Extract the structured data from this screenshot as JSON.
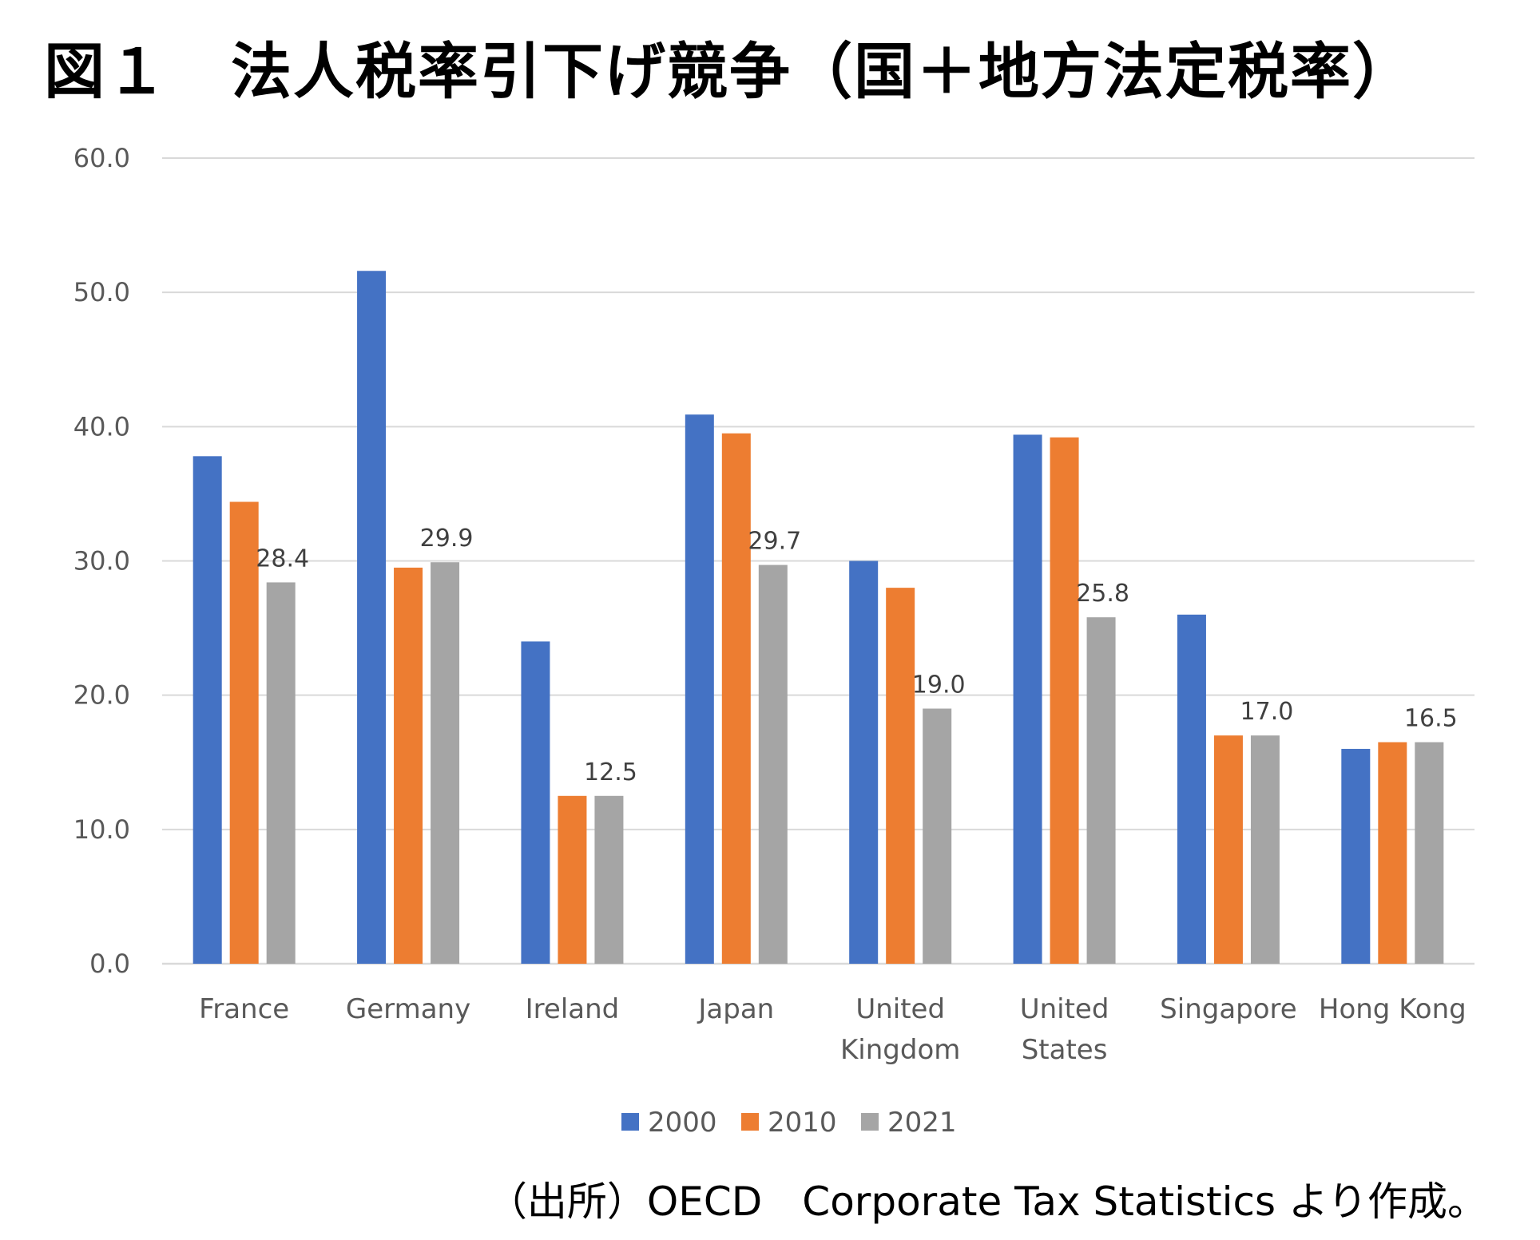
{
  "title": "図１　法人税率引下げ競争（国＋地方法定税率）",
  "source_note": "（出所）OECD　Corporate Tax Statistics より作成。",
  "colors": {
    "2000": "#4472C4",
    "2010": "#ED7D31",
    "2021": "#A5A5A5",
    "grid": "#D9D9D9"
  },
  "chart_data": {
    "type": "bar",
    "title": "",
    "xlabel": "",
    "ylabel": "",
    "ylim": [
      0,
      60
    ],
    "yticks": [
      "0.0",
      "10.0",
      "20.0",
      "30.0",
      "40.0",
      "50.0",
      "60.0"
    ],
    "grid": true,
    "legend_position": "bottom",
    "categories": [
      [
        "France"
      ],
      [
        "Germany"
      ],
      [
        "Ireland"
      ],
      [
        "Japan"
      ],
      [
        "United",
        "Kingdom"
      ],
      [
        "United",
        "States"
      ],
      [
        "Singapore"
      ],
      [
        "Hong Kong"
      ]
    ],
    "series": [
      {
        "name": "2000",
        "values": [
          37.8,
          51.6,
          24.0,
          40.9,
          30.0,
          39.4,
          26.0,
          16.0
        ]
      },
      {
        "name": "2010",
        "values": [
          34.4,
          29.5,
          12.5,
          39.5,
          28.0,
          39.2,
          17.0,
          16.5
        ]
      },
      {
        "name": "2021",
        "values": [
          28.4,
          29.9,
          12.5,
          29.7,
          19.0,
          25.8,
          17.0,
          16.5
        ]
      }
    ],
    "data_labels": {
      "series": "2021",
      "values": [
        "28.4",
        "29.9",
        "12.5",
        "29.7",
        "19.0",
        "25.8",
        "17.0",
        "16.5"
      ]
    }
  }
}
